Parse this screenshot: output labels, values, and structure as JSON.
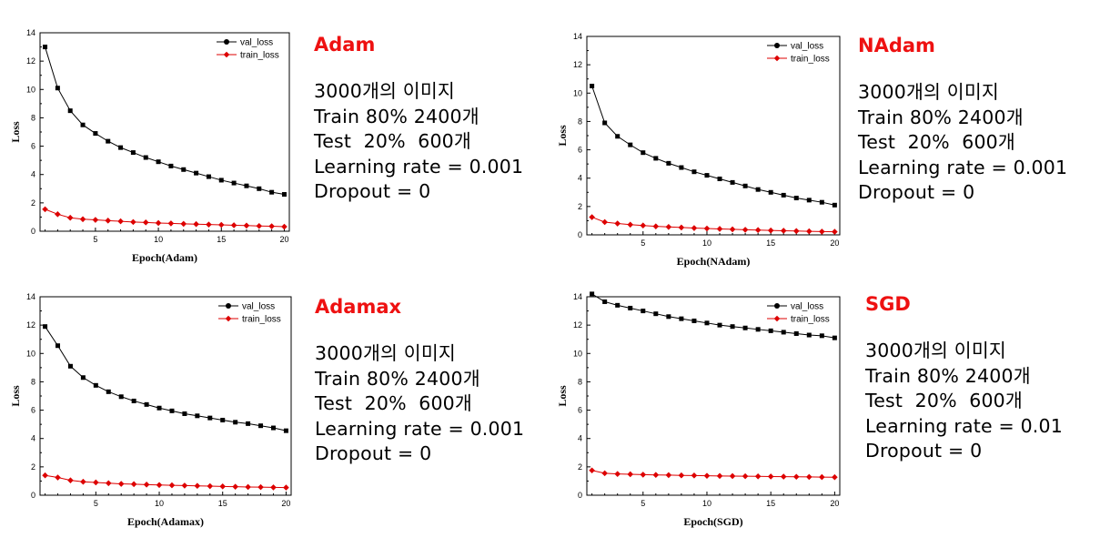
{
  "chart_data": [
    {
      "type": "line",
      "title": "Adam",
      "xlabel": "Epoch(Adam)",
      "ylabel": "Loss",
      "xlim": [
        0.6,
        20.4
      ],
      "ylim": [
        0,
        14
      ],
      "xticks": [
        5,
        10,
        15,
        20
      ],
      "yticks": [
        0,
        2,
        4,
        6,
        8,
        10,
        12,
        14
      ],
      "legend": "top-right",
      "series": [
        {
          "name": "val_loss",
          "color": "#000000",
          "marker": "square",
          "x": [
            1,
            2,
            3,
            4,
            5,
            6,
            7,
            8,
            9,
            10,
            11,
            12,
            13,
            14,
            15,
            16,
            17,
            18,
            19,
            20
          ],
          "y": [
            13.0,
            10.1,
            8.5,
            7.5,
            6.9,
            6.35,
            5.9,
            5.55,
            5.2,
            4.9,
            4.6,
            4.35,
            4.1,
            3.85,
            3.6,
            3.4,
            3.2,
            3.0,
            2.75,
            2.6
          ]
        },
        {
          "name": "train_loss",
          "color": "#dd0000",
          "marker": "diamond",
          "x": [
            1,
            2,
            3,
            4,
            5,
            6,
            7,
            8,
            9,
            10,
            11,
            12,
            13,
            14,
            15,
            16,
            17,
            18,
            19,
            20
          ],
          "y": [
            1.55,
            1.2,
            0.95,
            0.85,
            0.8,
            0.75,
            0.7,
            0.65,
            0.62,
            0.58,
            0.55,
            0.52,
            0.5,
            0.47,
            0.45,
            0.42,
            0.4,
            0.37,
            0.35,
            0.32
          ]
        }
      ]
    },
    {
      "type": "line",
      "title": "NAdam",
      "xlabel": "Epoch(NAdam)",
      "ylabel": "Loss",
      "xlim": [
        0.6,
        20.4
      ],
      "ylim": [
        0,
        14
      ],
      "xticks": [
        5,
        10,
        15,
        20
      ],
      "yticks": [
        0,
        2,
        4,
        6,
        8,
        10,
        12,
        14
      ],
      "legend": "top-right",
      "series": [
        {
          "name": "val_loss",
          "color": "#000000",
          "marker": "square",
          "x": [
            1,
            2,
            3,
            4,
            5,
            6,
            7,
            8,
            9,
            10,
            11,
            12,
            13,
            14,
            15,
            16,
            17,
            18,
            19,
            20
          ],
          "y": [
            10.5,
            7.9,
            6.95,
            6.35,
            5.8,
            5.4,
            5.05,
            4.75,
            4.45,
            4.2,
            3.95,
            3.7,
            3.45,
            3.2,
            3.0,
            2.8,
            2.6,
            2.45,
            2.3,
            2.1
          ]
        },
        {
          "name": "train_loss",
          "color": "#dd0000",
          "marker": "diamond",
          "x": [
            1,
            2,
            3,
            4,
            5,
            6,
            7,
            8,
            9,
            10,
            11,
            12,
            13,
            14,
            15,
            16,
            17,
            18,
            19,
            20
          ],
          "y": [
            1.25,
            0.9,
            0.8,
            0.72,
            0.66,
            0.6,
            0.56,
            0.52,
            0.48,
            0.45,
            0.42,
            0.39,
            0.36,
            0.34,
            0.31,
            0.29,
            0.27,
            0.25,
            0.23,
            0.22
          ]
        }
      ]
    },
    {
      "type": "line",
      "title": "Adamax",
      "xlabel": "Epoch(Adamax)",
      "ylabel": "Loss",
      "xlim": [
        0.6,
        20.4
      ],
      "ylim": [
        0,
        14
      ],
      "xticks": [
        5,
        10,
        15,
        20
      ],
      "yticks": [
        0,
        2,
        4,
        6,
        8,
        10,
        12,
        14
      ],
      "legend": "top-right",
      "series": [
        {
          "name": "val_loss",
          "color": "#000000",
          "marker": "square",
          "x": [
            1,
            2,
            3,
            4,
            5,
            6,
            7,
            8,
            9,
            10,
            11,
            12,
            13,
            14,
            15,
            16,
            17,
            18,
            19,
            20
          ],
          "y": [
            11.9,
            10.55,
            9.1,
            8.3,
            7.75,
            7.3,
            6.95,
            6.65,
            6.4,
            6.15,
            5.95,
            5.75,
            5.6,
            5.45,
            5.3,
            5.15,
            5.05,
            4.9,
            4.75,
            4.55
          ]
        },
        {
          "name": "train_loss",
          "color": "#dd0000",
          "marker": "diamond",
          "x": [
            1,
            2,
            3,
            4,
            5,
            6,
            7,
            8,
            9,
            10,
            11,
            12,
            13,
            14,
            15,
            16,
            17,
            18,
            19,
            20
          ],
          "y": [
            1.4,
            1.25,
            1.05,
            0.95,
            0.9,
            0.85,
            0.8,
            0.78,
            0.75,
            0.72,
            0.7,
            0.68,
            0.66,
            0.64,
            0.62,
            0.6,
            0.58,
            0.57,
            0.55,
            0.54
          ]
        }
      ]
    },
    {
      "type": "line",
      "title": "SGD",
      "xlabel": "Epoch(SGD)",
      "ylabel": "Loss",
      "xlim": [
        0.6,
        20.4
      ],
      "ylim": [
        0,
        14
      ],
      "xticks": [
        5,
        10,
        15,
        20
      ],
      "yticks": [
        0,
        2,
        4,
        6,
        8,
        10,
        12,
        14
      ],
      "legend": "top-right",
      "series": [
        {
          "name": "val_loss",
          "color": "#000000",
          "marker": "square",
          "x": [
            1,
            2,
            3,
            4,
            5,
            6,
            7,
            8,
            9,
            10,
            11,
            12,
            13,
            14,
            15,
            16,
            17,
            18,
            19,
            20
          ],
          "y": [
            14.2,
            13.65,
            13.4,
            13.2,
            13.0,
            12.8,
            12.6,
            12.45,
            12.3,
            12.15,
            12.0,
            11.9,
            11.8,
            11.7,
            11.6,
            11.5,
            11.4,
            11.3,
            11.25,
            11.1
          ]
        },
        {
          "name": "train_loss",
          "color": "#dd0000",
          "marker": "diamond",
          "x": [
            1,
            2,
            3,
            4,
            5,
            6,
            7,
            8,
            9,
            10,
            11,
            12,
            13,
            14,
            15,
            16,
            17,
            18,
            19,
            20
          ],
          "y": [
            1.75,
            1.55,
            1.5,
            1.48,
            1.45,
            1.43,
            1.42,
            1.4,
            1.39,
            1.37,
            1.36,
            1.35,
            1.34,
            1.33,
            1.32,
            1.31,
            1.3,
            1.29,
            1.28,
            1.27
          ]
        }
      ]
    }
  ],
  "info": [
    {
      "optimizer": "Adam",
      "lines": [
        "3000개의 이미지",
        "Train 80% 2400개",
        "Test  20%  600개",
        "Learning rate = 0.001",
        "Dropout = 0"
      ]
    },
    {
      "optimizer": "NAdam",
      "lines": [
        "3000개의 이미지",
        "Train 80% 2400개",
        "Test  20%  600개",
        "Learning rate = 0.001",
        "Dropout = 0"
      ]
    },
    {
      "optimizer": "Adamax",
      "lines": [
        "3000개의 이미지",
        "Train 80% 2400개",
        "Test  20%  600개",
        "Learning rate = 0.001",
        "Dropout = 0"
      ]
    },
    {
      "optimizer": "SGD",
      "lines": [
        "3000개의 이미지",
        "Train 80% 2400개",
        "Test  20%  600개",
        "Learning rate = 0.01",
        "Dropout = 0"
      ]
    }
  ],
  "colors": {
    "accent": "#ee1111",
    "val": "#000000",
    "train": "#dd0000"
  }
}
